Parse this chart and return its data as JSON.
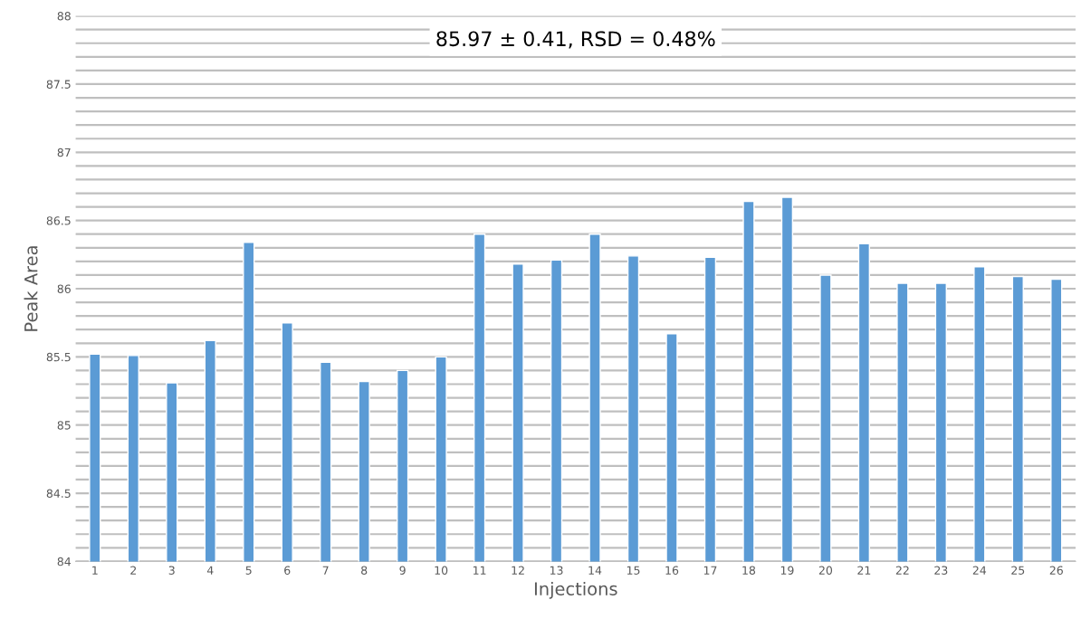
{
  "chart_data": {
    "type": "bar",
    "xlabel": "Injections",
    "ylabel": "Peak Area",
    "annotations": [
      "85.97 ± 0.41, RSD = 0.48%"
    ],
    "categories": [
      "1",
      "2",
      "3",
      "4",
      "5",
      "6",
      "7",
      "8",
      "9",
      "10",
      "11",
      "12",
      "13",
      "14",
      "15",
      "16",
      "17",
      "18",
      "19",
      "20",
      "21",
      "22",
      "23",
      "24",
      "25",
      "26"
    ],
    "values": [
      85.52,
      85.51,
      85.31,
      85.62,
      86.34,
      85.75,
      85.46,
      85.32,
      85.4,
      85.5,
      86.4,
      86.18,
      86.21,
      86.4,
      86.24,
      85.67,
      86.23,
      86.64,
      86.67,
      86.1,
      86.33,
      86.04,
      86.04,
      86.16,
      86.09,
      86.07
    ],
    "color": "#5b9bd5",
    "ylim": [
      84,
      88
    ],
    "yticks": [
      84,
      {
        "value": 84.1,
        "label": null
      },
      {
        "value": 84.2,
        "label": null
      },
      {
        "value": 84.3,
        "label": null
      },
      {
        "value": 84.4,
        "label": null
      },
      84.5,
      {
        "value": 84.6,
        "label": null
      },
      {
        "value": 84.7,
        "label": null
      },
      {
        "value": 84.8,
        "label": null
      },
      {
        "value": 84.9,
        "label": null
      },
      85,
      {
        "value": 85.1,
        "label": null
      },
      {
        "value": 85.2,
        "label": null
      },
      {
        "value": 85.3,
        "label": null
      },
      {
        "value": 85.4,
        "label": null
      },
      85.5,
      {
        "value": 85.6,
        "label": null
      },
      {
        "value": 85.7,
        "label": null
      },
      {
        "value": 85.8,
        "label": null
      },
      {
        "value": 85.9,
        "label": null
      },
      86,
      {
        "value": 86.1,
        "label": null
      },
      {
        "value": 86.2,
        "label": null
      },
      {
        "value": 86.3,
        "label": null
      },
      {
        "value": 86.4,
        "label": null
      },
      86.5,
      {
        "value": 86.6,
        "label": null
      },
      {
        "value": 86.7,
        "label": null
      },
      {
        "value": 86.8,
        "label": null
      },
      {
        "value": 86.9,
        "label": null
      },
      87,
      {
        "value": 87.1,
        "label": null
      },
      {
        "value": 87.2,
        "label": null
      },
      {
        "value": 87.3,
        "label": null
      },
      {
        "value": 87.4,
        "label": null
      },
      87.5,
      {
        "value": 87.6,
        "label": null
      },
      {
        "value": 87.7,
        "label": null
      },
      {
        "value": 87.8,
        "label": null
      },
      {
        "value": 87.9,
        "label": null
      },
      88
    ],
    "grid": "y",
    "legend": false
  }
}
